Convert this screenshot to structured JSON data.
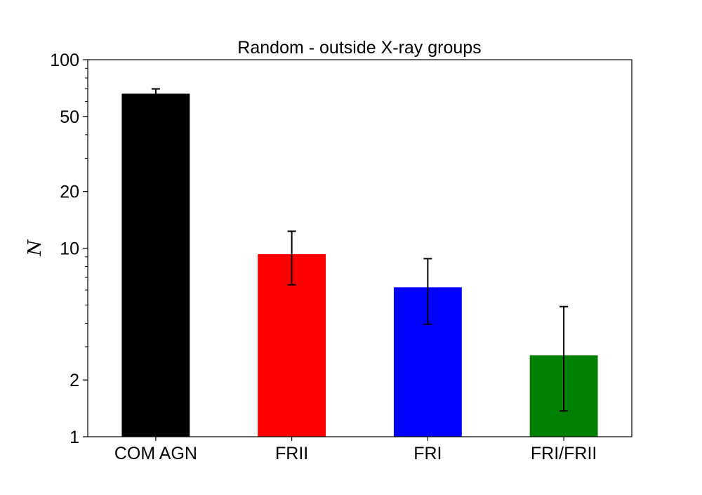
{
  "chart_data": {
    "type": "bar",
    "title": "Random - outside X-ray groups",
    "xlabel": "",
    "ylabel": "N",
    "yscale": "log",
    "ylim": [
      1,
      100
    ],
    "yticks": [
      1,
      2,
      10,
      20,
      50,
      100
    ],
    "yticks_labels": [
      "1",
      "2",
      "10",
      "20",
      "50",
      "100"
    ],
    "categories": [
      "COM AGN",
      "FRII",
      "FRI",
      "FRI/FRII"
    ],
    "values": [
      66,
      9.3,
      6.2,
      2.7
    ],
    "error_lower": [
      62.5,
      6.4,
      3.95,
      1.37
    ],
    "error_upper": [
      70,
      12.3,
      8.8,
      4.9
    ],
    "colors": [
      "#000000",
      "#ff0000",
      "#0000ff",
      "#008000"
    ],
    "grid": false,
    "legend": "none"
  }
}
